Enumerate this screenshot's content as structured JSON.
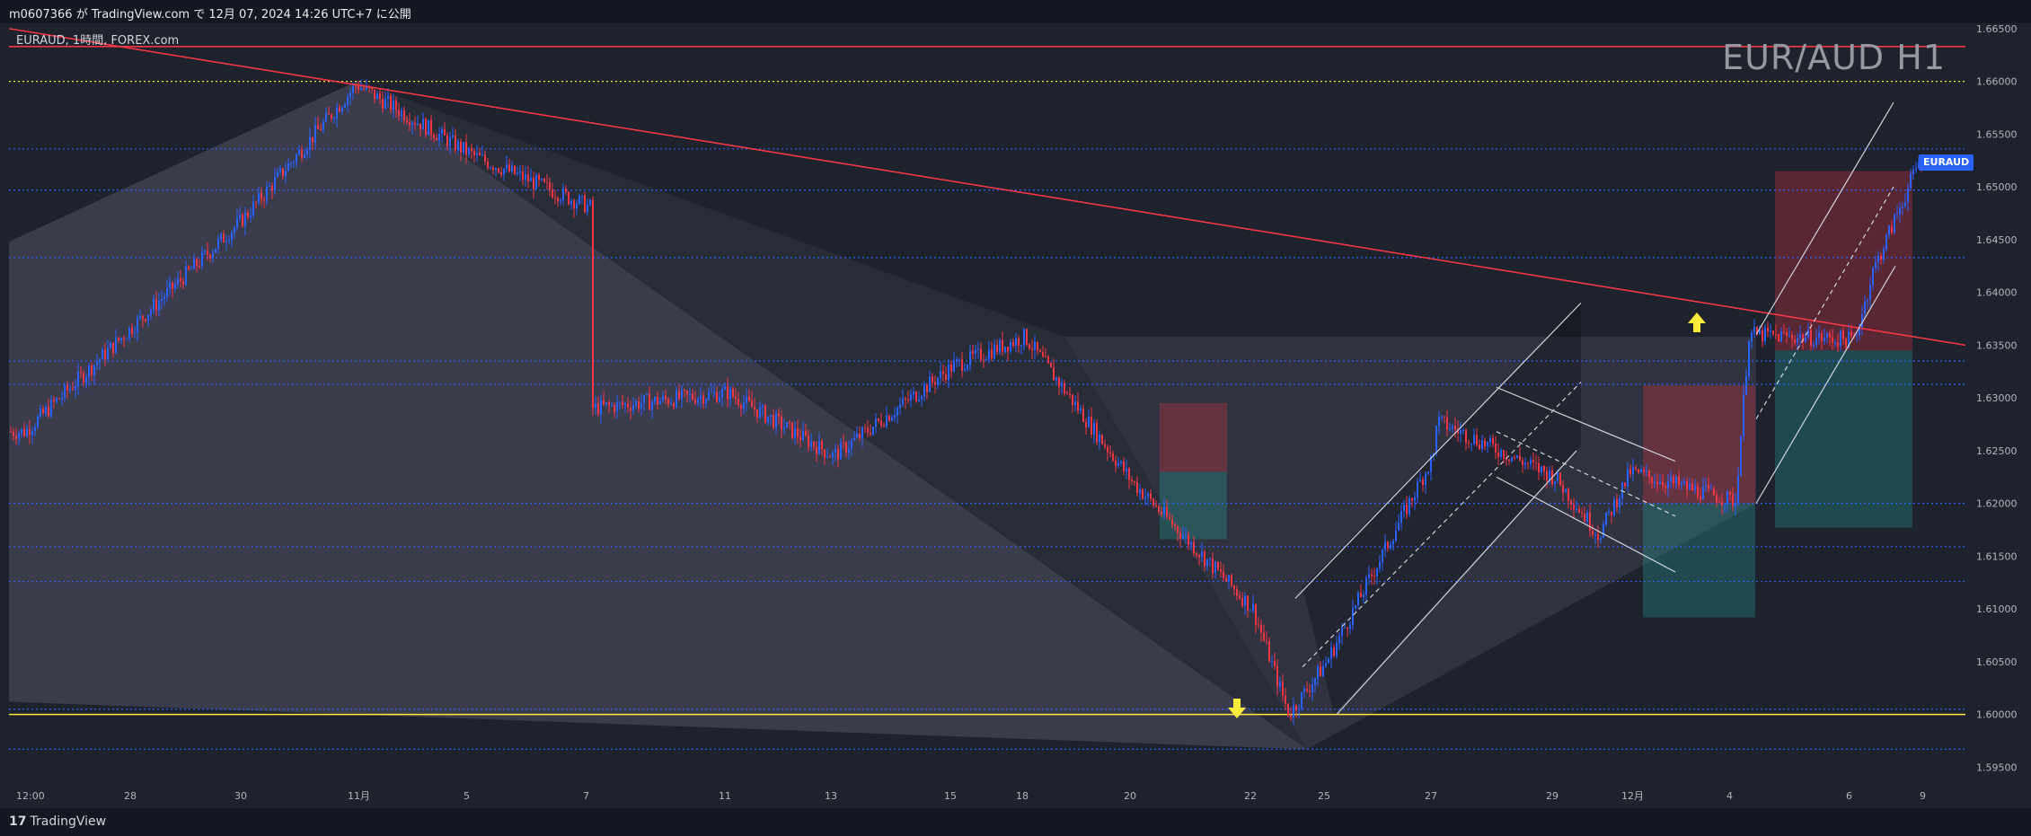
{
  "header": {
    "publish_text": "m0607366 が TradingView.com で 12月 07, 2024 14:26 UTC+7 に公開"
  },
  "legend": {
    "text": "EURAUD, 1時間, FOREX.com"
  },
  "watermark": {
    "text": "EUR/AUD H1"
  },
  "price_label": {
    "text": "EURAUD",
    "color": "#2962ff"
  },
  "footer": {
    "brand": "TradingView",
    "logo_icon": "tradingview-logo-icon"
  },
  "colors": {
    "up": "#2962ff",
    "down": "#f23645",
    "background": "#1e222d",
    "trendline": "#f23645",
    "support_line": "#ffeb3b"
  },
  "chart_data": {
    "type": "candlestick",
    "symbol": "EURAUD",
    "timeframe": "1時間",
    "source": "FOREX.com",
    "x_tick_labels": [
      "12:00",
      "28",
      "30",
      "11月",
      "5",
      "7",
      "11",
      "13",
      "15",
      "18",
      "20",
      "22",
      "25",
      "27",
      "29",
      "12月",
      "4",
      "6",
      "9"
    ],
    "y_tick_labels": [
      "1.66500",
      "1.66000",
      "1.65500",
      "1.65000",
      "1.64500",
      "1.64000",
      "1.63500",
      "1.63000",
      "1.62500",
      "1.62000",
      "1.61500",
      "1.61000",
      "1.60500",
      "1.60000",
      "1.59500"
    ],
    "ylim": [
      1.5935,
      1.6655
    ],
    "current_price": 1.6538,
    "swing_points": [
      {
        "x": "12:00",
        "y": 1.6268
      },
      {
        "x": "30",
        "y": 1.647
      },
      {
        "x": "11月",
        "y": 1.6597
      },
      {
        "x": "5",
        "y": 1.653
      },
      {
        "x": "7",
        "y": 1.648
      },
      {
        "x": "7",
        "y": 1.629
      },
      {
        "x": "11",
        "y": 1.6305
      },
      {
        "x": "13",
        "y": 1.6245
      },
      {
        "x": "15",
        "y": 1.633
      },
      {
        "x": "18",
        "y": 1.6358
      },
      {
        "x": "20",
        "y": 1.622
      },
      {
        "x": "22",
        "y": 1.61
      },
      {
        "x": "22",
        "y": 1.6
      },
      {
        "x": "25",
        "y": 1.605
      },
      {
        "x": "27",
        "y": 1.6245
      },
      {
        "x": "27",
        "y": 1.63
      },
      {
        "x": "29",
        "y": 1.6225
      },
      {
        "x": "12月",
        "y": 1.617
      },
      {
        "x": "12月",
        "y": 1.623
      },
      {
        "x": "4",
        "y": 1.6202
      },
      {
        "x": "4",
        "y": 1.636
      },
      {
        "x": "6",
        "y": 1.6355
      },
      {
        "x": "6",
        "y": 1.642
      },
      {
        "x": "9",
        "y": 1.6545
      }
    ],
    "horizontal_lines": [
      {
        "y": 1.6633,
        "color": "#f23645",
        "style": "solid"
      },
      {
        "y": 1.66,
        "color": "#ffeb3b",
        "style": "dotted"
      },
      {
        "y": 1.6536,
        "color": "#2962ff",
        "style": "dotted"
      },
      {
        "y": 1.6497,
        "color": "#2962ff",
        "style": "dotted"
      },
      {
        "y": 1.6433,
        "color": "#2962ff",
        "style": "dotted"
      },
      {
        "y": 1.6335,
        "color": "#2962ff",
        "style": "dotted"
      },
      {
        "y": 1.6313,
        "color": "#2962ff",
        "style": "dotted"
      },
      {
        "y": 1.62,
        "color": "#2962ff",
        "style": "dotted"
      },
      {
        "y": 1.6159,
        "color": "#2962ff",
        "style": "dotted"
      },
      {
        "y": 1.6126,
        "color": "#2962ff",
        "style": "dotted"
      },
      {
        "y": 1.6005,
        "color": "#2962ff",
        "style": "dotted"
      },
      {
        "y": 1.6,
        "color": "#ffeb3b",
        "style": "solid"
      },
      {
        "y": 1.5967,
        "color": "#2962ff",
        "style": "dotted"
      }
    ],
    "arrows": [
      {
        "direction": "down",
        "x": "22",
        "y": 1.598,
        "color": "#ffeb3b"
      },
      {
        "direction": "up",
        "x": "12月",
        "y": 1.6375,
        "color": "#ffeb3b"
      }
    ],
    "grid": true,
    "legend": "top-left"
  }
}
